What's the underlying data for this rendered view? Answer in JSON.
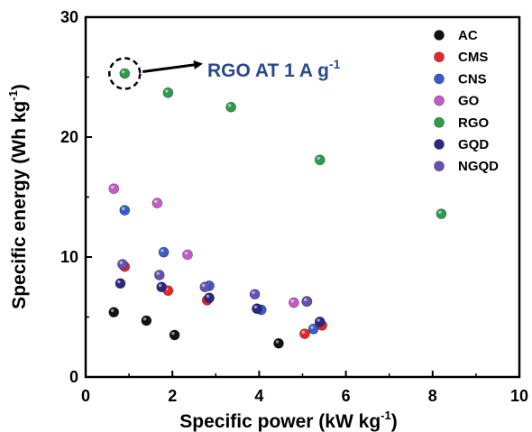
{
  "chart_data": {
    "type": "scatter",
    "xlabel": "Specific power (kW kg",
    "xlabel_sup": "-1",
    "xlabel_end": ")",
    "ylabel": "Specific energy (Wh kg",
    "ylabel_sup": "-1",
    "ylabel_end": ")",
    "xlim": [
      0,
      10
    ],
    "ylim": [
      0,
      30
    ],
    "xticks": [
      0,
      2,
      4,
      6,
      8,
      10
    ],
    "yticks": [
      0,
      10,
      20,
      30
    ],
    "grid": false,
    "legend_position": "top-right",
    "series": [
      {
        "name": "AC",
        "color": "#111111",
        "points": [
          [
            0.65,
            5.4
          ],
          [
            1.4,
            4.7
          ],
          [
            2.05,
            3.5
          ],
          [
            4.45,
            2.8
          ]
        ]
      },
      {
        "name": "CMS",
        "color": "#e8262a",
        "points": [
          [
            0.9,
            9.2
          ],
          [
            1.9,
            7.2
          ],
          [
            2.8,
            6.4
          ],
          [
            5.05,
            3.6
          ],
          [
            5.45,
            4.3
          ]
        ]
      },
      {
        "name": "CNS",
        "color": "#3b5cc6",
        "points": [
          [
            0.9,
            13.9
          ],
          [
            1.8,
            10.4
          ],
          [
            2.85,
            7.6
          ],
          [
            4.05,
            5.6
          ],
          [
            5.25,
            4.0
          ]
        ]
      },
      {
        "name": "GO",
        "color": "#c25cc6",
        "points": [
          [
            0.65,
            15.7
          ],
          [
            1.65,
            14.5
          ],
          [
            2.35,
            10.2
          ],
          [
            4.8,
            6.2
          ],
          [
            5.1,
            6.3
          ]
        ]
      },
      {
        "name": "RGO",
        "color": "#2e9a4c",
        "points": [
          [
            0.9,
            25.3
          ],
          [
            1.9,
            23.7
          ],
          [
            3.35,
            22.5
          ],
          [
            5.4,
            18.1
          ],
          [
            8.2,
            13.6
          ]
        ]
      },
      {
        "name": "GQD",
        "color": "#2a2880",
        "points": [
          [
            0.8,
            7.8
          ],
          [
            1.75,
            7.5
          ],
          [
            2.85,
            6.6
          ],
          [
            3.95,
            5.7
          ],
          [
            5.4,
            4.6
          ]
        ]
      },
      {
        "name": "NGQD",
        "color": "#6a4fb3",
        "points": [
          [
            0.85,
            9.4
          ],
          [
            1.7,
            8.5
          ],
          [
            2.75,
            7.5
          ],
          [
            3.9,
            6.9
          ],
          [
            5.1,
            6.3
          ]
        ]
      }
    ],
    "annotation": {
      "text": "RGO AT 1 A g",
      "sup": "-1",
      "color": "#2b4a8a",
      "target": [
        0.9,
        25.3
      ]
    }
  }
}
